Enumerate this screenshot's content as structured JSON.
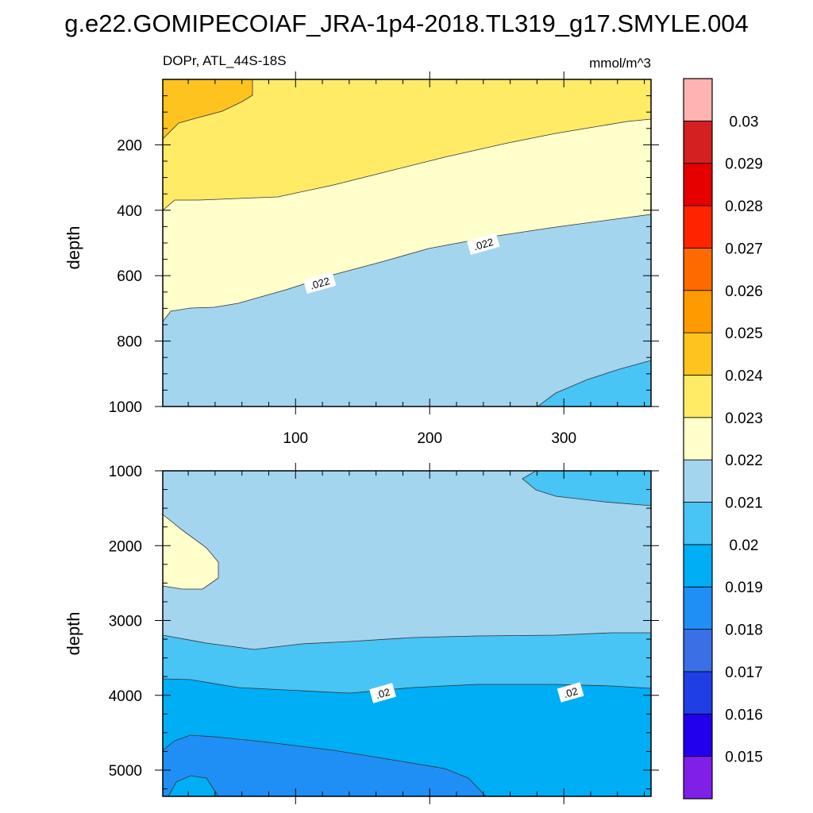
{
  "page": {
    "title": "g.e22.GOMIPECOIAF_JRA-1p4-2018.TL319_g17.SMYLE.004"
  },
  "chart_data": {
    "type": "contour",
    "variable": "DOPr",
    "region": "ATL_44S-18S",
    "units": "mmol/m^3",
    "x_axis": {
      "range": [
        1,
        365
      ],
      "tick_labels": [
        "100",
        "200",
        "300"
      ],
      "tick_values": [
        100,
        200,
        300
      ]
    },
    "colorbar": {
      "levels": [
        "0.015",
        "0.016",
        "0.017",
        "0.018",
        "0.019",
        "0.02",
        "0.021",
        "0.022",
        "0.023",
        "0.024",
        "0.025",
        "0.026",
        "0.027",
        "0.028",
        "0.029",
        "0.03"
      ],
      "colors": [
        "#7f1fe8",
        "#2200ee",
        "#1f3ee6",
        "#3a6fe6",
        "#1f8ff5",
        "#00aef5",
        "#48c4f5",
        "#a3d5ef",
        "#ffffcc",
        "#ffeb66",
        "#ffc31f",
        "#ff9a00",
        "#ff6a00",
        "#ff2400",
        "#e60000",
        "#d42020",
        "#ffb3b3"
      ]
    },
    "panels": [
      {
        "name": "upper",
        "subtitle_left": "DOPr, ATL_44S-18S",
        "subtitle_right": "mmol/m^3",
        "ylabel": "depth",
        "y_range": [
          0,
          1000
        ],
        "y_tick_labels": [
          "200",
          "400",
          "600",
          "800",
          "1000"
        ],
        "y_tick_values": [
          200,
          400,
          600,
          800,
          1000
        ],
        "contour_labels": [
          {
            "text": ".022",
            "x": 118,
            "y": 622
          },
          {
            "text": ".022",
            "x": 240,
            "y": 503
          }
        ]
      },
      {
        "name": "lower",
        "subtitle_left": "",
        "subtitle_right": "",
        "ylabel": "depth",
        "y_range": [
          1000,
          5350
        ],
        "y_tick_labels": [
          "1000",
          "2000",
          "3000",
          "4000",
          "5000"
        ],
        "y_tick_values": [
          1000,
          2000,
          3000,
          4000,
          5000
        ],
        "contour_labels": [
          {
            "text": ".02",
            "x": 165,
            "y": 3970
          },
          {
            "text": ".02",
            "x": 305,
            "y": 3960
          }
        ]
      }
    ]
  }
}
